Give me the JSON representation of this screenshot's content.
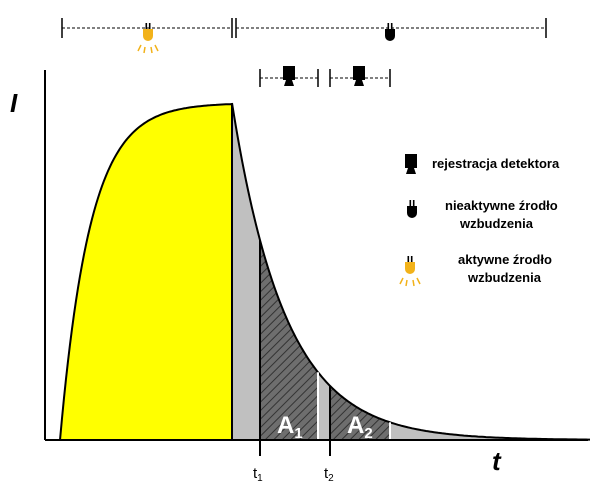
{
  "axes": {
    "y_label": "I",
    "x_label": "t"
  },
  "markers": [
    {
      "main": "t",
      "sub": "1"
    },
    {
      "main": "t",
      "sub": "2"
    }
  ],
  "areas": [
    {
      "main": "A",
      "sub": "1"
    },
    {
      "main": "A",
      "sub": "2"
    }
  ],
  "legend": [
    {
      "lines": [
        "rejestracja detektora"
      ]
    },
    {
      "lines": [
        "nieaktywne źrodło",
        "wzbudzenia"
      ]
    },
    {
      "lines": [
        "aktywne źrodło",
        "wzbudzenia"
      ]
    }
  ]
}
